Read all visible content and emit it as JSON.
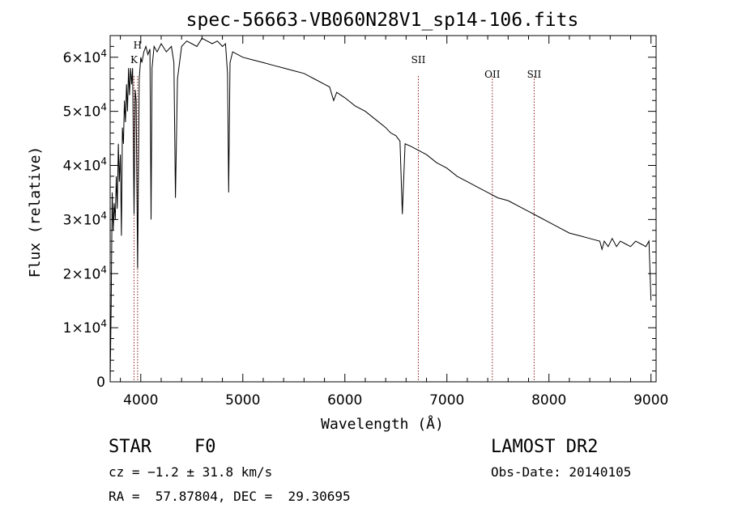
{
  "chart_data": {
    "type": "line",
    "title": "spec-56663-VB060N28V1_sp14-106.fits",
    "xlabel": "Wavelength (Å)",
    "ylabel": "Flux (relative)",
    "xlim": [
      3700,
      9050
    ],
    "ylim": [
      0,
      64000
    ],
    "x_ticks": [
      4000,
      5000,
      6000,
      7000,
      8000,
      9000
    ],
    "y_ticks": [
      {
        "value": 0,
        "mantissa": "0",
        "exp": ""
      },
      {
        "value": 10000,
        "mantissa": "1×10",
        "exp": "4"
      },
      {
        "value": 20000,
        "mantissa": "2×10",
        "exp": "4"
      },
      {
        "value": 30000,
        "mantissa": "3×10",
        "exp": "4"
      },
      {
        "value": 40000,
        "mantissa": "4×10",
        "exp": "4"
      },
      {
        "value": 50000,
        "mantissa": "5×10",
        "exp": "4"
      },
      {
        "value": 60000,
        "mantissa": "6×10",
        "exp": "4"
      }
    ],
    "line_markers": [
      {
        "label": "H",
        "wavelength": 3969
      },
      {
        "label": "K",
        "wavelength": 3934
      },
      {
        "label": "SII",
        "wavelength": 6720
      },
      {
        "label": "OII",
        "wavelength": 7445
      },
      {
        "label": "SII",
        "wavelength": 7855
      }
    ],
    "series": [
      {
        "color": "#000000",
        "x": [
          3700,
          3710,
          3720,
          3730,
          3740,
          3750,
          3760,
          3770,
          3780,
          3790,
          3800,
          3810,
          3820,
          3830,
          3840,
          3850,
          3860,
          3870,
          3880,
          3890,
          3900,
          3910,
          3920,
          3934,
          3945,
          3955,
          3969,
          3985,
          4000,
          4010,
          4030,
          4050,
          4070,
          4090,
          4101,
          4110,
          4130,
          4160,
          4200,
          4250,
          4300,
          4325,
          4340,
          4360,
          4400,
          4450,
          4500,
          4550,
          4600,
          4650,
          4700,
          4750,
          4800,
          4830,
          4850,
          4861,
          4875,
          4900,
          4950,
          5000,
          5100,
          5200,
          5300,
          5400,
          5500,
          5600,
          5700,
          5800,
          5850,
          5890,
          5920,
          6000,
          6100,
          6200,
          6300,
          6400,
          6450,
          6500,
          6540,
          6563,
          6590,
          6650,
          6700,
          6800,
          6900,
          7000,
          7100,
          7200,
          7300,
          7400,
          7500,
          7600,
          7700,
          7800,
          7900,
          8000,
          8100,
          8200,
          8300,
          8400,
          8498,
          8520,
          8542,
          8580,
          8620,
          8662,
          8700,
          8750,
          8800,
          8850,
          8900,
          8950,
          8980,
          9000
        ],
        "y": [
          0,
          15000,
          35000,
          28000,
          33000,
          30000,
          38000,
          32000,
          44000,
          37000,
          42000,
          27000,
          47000,
          44000,
          52000,
          48000,
          55000,
          50000,
          58000,
          53000,
          58000,
          55000,
          58000,
          31000,
          54000,
          52000,
          21000,
          56000,
          60000,
          59000,
          61000,
          62000,
          60500,
          61500,
          30000,
          58000,
          62000,
          61000,
          62500,
          61000,
          62000,
          59000,
          34000,
          56000,
          62000,
          63000,
          62500,
          62000,
          63500,
          63000,
          62500,
          63000,
          62000,
          62500,
          57000,
          35000,
          59000,
          61000,
          60500,
          60000,
          59500,
          59000,
          58500,
          58000,
          57500,
          57000,
          56000,
          55000,
          54500,
          52000,
          53500,
          52500,
          51000,
          50000,
          48500,
          47000,
          46000,
          45500,
          44500,
          31000,
          44000,
          43500,
          43000,
          42000,
          40500,
          39500,
          38000,
          37000,
          36000,
          35000,
          34000,
          33500,
          32500,
          31500,
          30500,
          29500,
          28500,
          27500,
          27000,
          26500,
          26000,
          24500,
          26000,
          25000,
          26500,
          25000,
          26000,
          25500,
          25000,
          26000,
          25500,
          25000,
          26000,
          15000
        ]
      }
    ]
  },
  "info": {
    "object_type": "STAR",
    "subclass": "F0",
    "survey": "LAMOST DR2",
    "cz": "cz = −1.2 ± 31.8 km/s",
    "obs_date": "Obs-Date: 20140105",
    "coords": "RA =  57.87804, DEC =  29.30695"
  },
  "style": {
    "line_color": "#000000",
    "marker_color": "#8b1a1a"
  }
}
